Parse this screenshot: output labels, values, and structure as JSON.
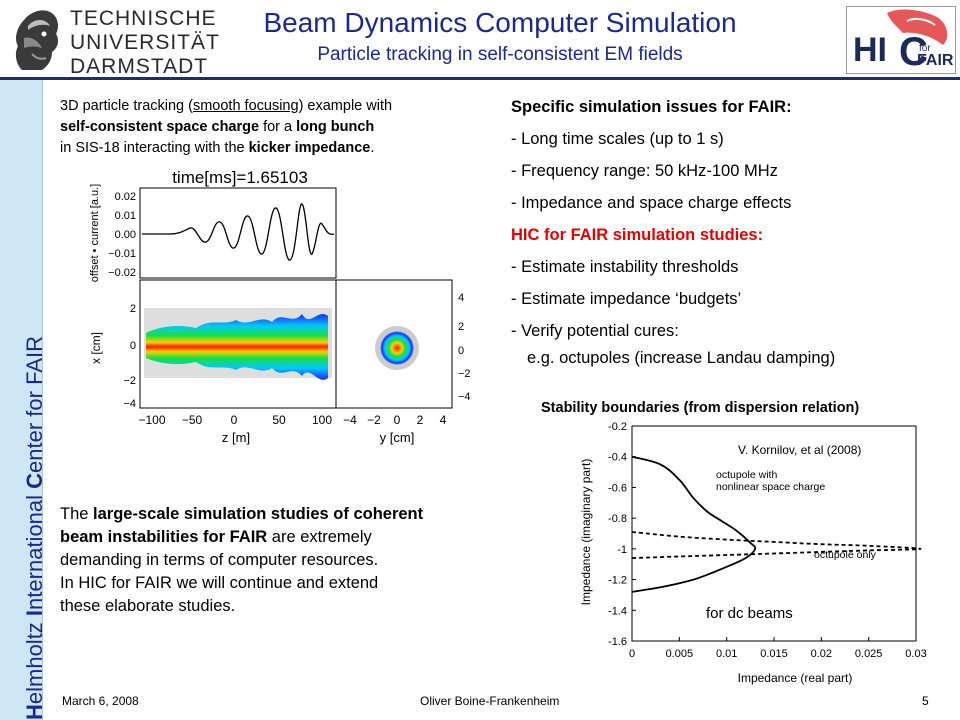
{
  "header": {
    "title": "Beam Dynamics Computer Simulation",
    "subtitle": "Particle tracking in self-consistent EM fields",
    "tud_logo_lines": [
      "TECHNISCHE",
      "UNIVERSITÄT",
      "DARMSTADT"
    ],
    "hic_logo_text": "HIC for FAIR"
  },
  "sidebar": {
    "text_parts": [
      "H",
      "elmholtz ",
      "I",
      "nternational ",
      "C",
      "enter for FAIR"
    ]
  },
  "left_desc": {
    "line1_pre": "3D particle tracking (",
    "line1_u": "smooth focusing",
    "line1_post": ") example with",
    "line2_b1": "self-consistent space charge",
    "line2_mid": " for a ",
    "line2_b2": "long bunch",
    "line3_pre": " in SIS-18 interacting with the ",
    "line3_b": "kicker impedance",
    "line3_post": "."
  },
  "sim_plot": {
    "time_label": "time[ms]=1.65103",
    "top_ylabel": "offset • current [a.u.]",
    "top_yticks": [
      "0.02",
      "0.01",
      "0.00",
      "−0.01",
      "−0.02"
    ],
    "left_ylabel": "x [cm]",
    "left_yticks": [
      "2",
      "0",
      "−2",
      "−4"
    ],
    "right_yticks": [
      "4",
      "2",
      "0",
      "−2",
      "−4"
    ],
    "z_ticks": [
      "−100",
      "−50",
      "0",
      "50",
      "100"
    ],
    "y_ticks": [
      "−4",
      "−2",
      "0",
      "2",
      "4"
    ],
    "z_label": "z [m]",
    "y_label": "y [cm]"
  },
  "right_list": {
    "header": "Specific simulation issues for FAIR:",
    "items1": [
      "- Long time scales (up to 1 s)",
      "- Frequency range: 50 kHz-100 MHz",
      "- Impedance and space charge effects"
    ],
    "red_header": "HIC for FAIR simulation studies:",
    "items2": [
      "- Estimate instability thresholds",
      "- Estimate impedance ‘budgets’",
      "- Verify potential cures:"
    ],
    "sub_item": "e.g. octupoles (increase Landau damping)"
  },
  "stability": {
    "caption": "Stability boundaries (from dispersion relation)",
    "citation": "V. Kornilov, et al (2008)",
    "ylabel": "Impedance (imaginary part)",
    "xlabel": "Impedance (real part)",
    "yticks": [
      "-0.2",
      "-0.4",
      "-0.6",
      "-0.8",
      "-1",
      "-1.2",
      "-1.4",
      "-1.6"
    ],
    "xticks": [
      "0",
      "0.005",
      "0.01",
      "0.015",
      "0.02",
      "0.025",
      "0.03"
    ],
    "curve1_label_1": "octupole with",
    "curve1_label_2": "nonlinear space charge",
    "curve2_label": "octupole only",
    "note": "for dc beams"
  },
  "chart_data": {
    "type": "line",
    "title": "Stability boundaries (from dispersion relation)",
    "xlabel": "Impedance (real part)",
    "ylabel": "Impedance (imaginary part)",
    "xlim": [
      0,
      0.03
    ],
    "ylim": [
      -1.6,
      -0.2
    ],
    "series": [
      {
        "name": "octupole with nonlinear space charge",
        "x": [
          0.0,
          0.003,
          0.005,
          0.0065,
          0.008,
          0.0095,
          0.011,
          0.0125,
          0.013,
          0.012,
          0.0095,
          0.0065,
          0.003,
          0.0
        ],
        "y": [
          -0.4,
          -0.45,
          -0.55,
          -0.67,
          -0.76,
          -0.82,
          -0.88,
          -0.96,
          -1.0,
          -1.06,
          -1.13,
          -1.2,
          -1.25,
          -1.28
        ]
      },
      {
        "name": "octupole only",
        "x": [
          0.0,
          0.005,
          0.01,
          0.015,
          0.02,
          0.025,
          0.0305,
          0.025,
          0.02,
          0.015,
          0.01,
          0.005,
          0.0
        ],
        "y": [
          -0.89,
          -0.92,
          -0.94,
          -0.955,
          -0.97,
          -0.98,
          -1.0,
          -1.01,
          -1.02,
          -1.03,
          -1.04,
          -1.05,
          -1.06
        ]
      }
    ]
  },
  "bottom_text": {
    "l1_pre": "The ",
    "l1_b": "large-scale simulation studies of coherent",
    "l2_b": "beam instabilities for FAIR",
    "l2_post": " are extremely",
    "l3": "demanding in terms of computer resources.",
    "l4": "In HIC for FAIR we will continue and extend",
    "l5": "these elaborate studies."
  },
  "footer": {
    "date": "March 6, 2008",
    "author": "Oliver Boine-Frankenheim",
    "page": "5"
  }
}
